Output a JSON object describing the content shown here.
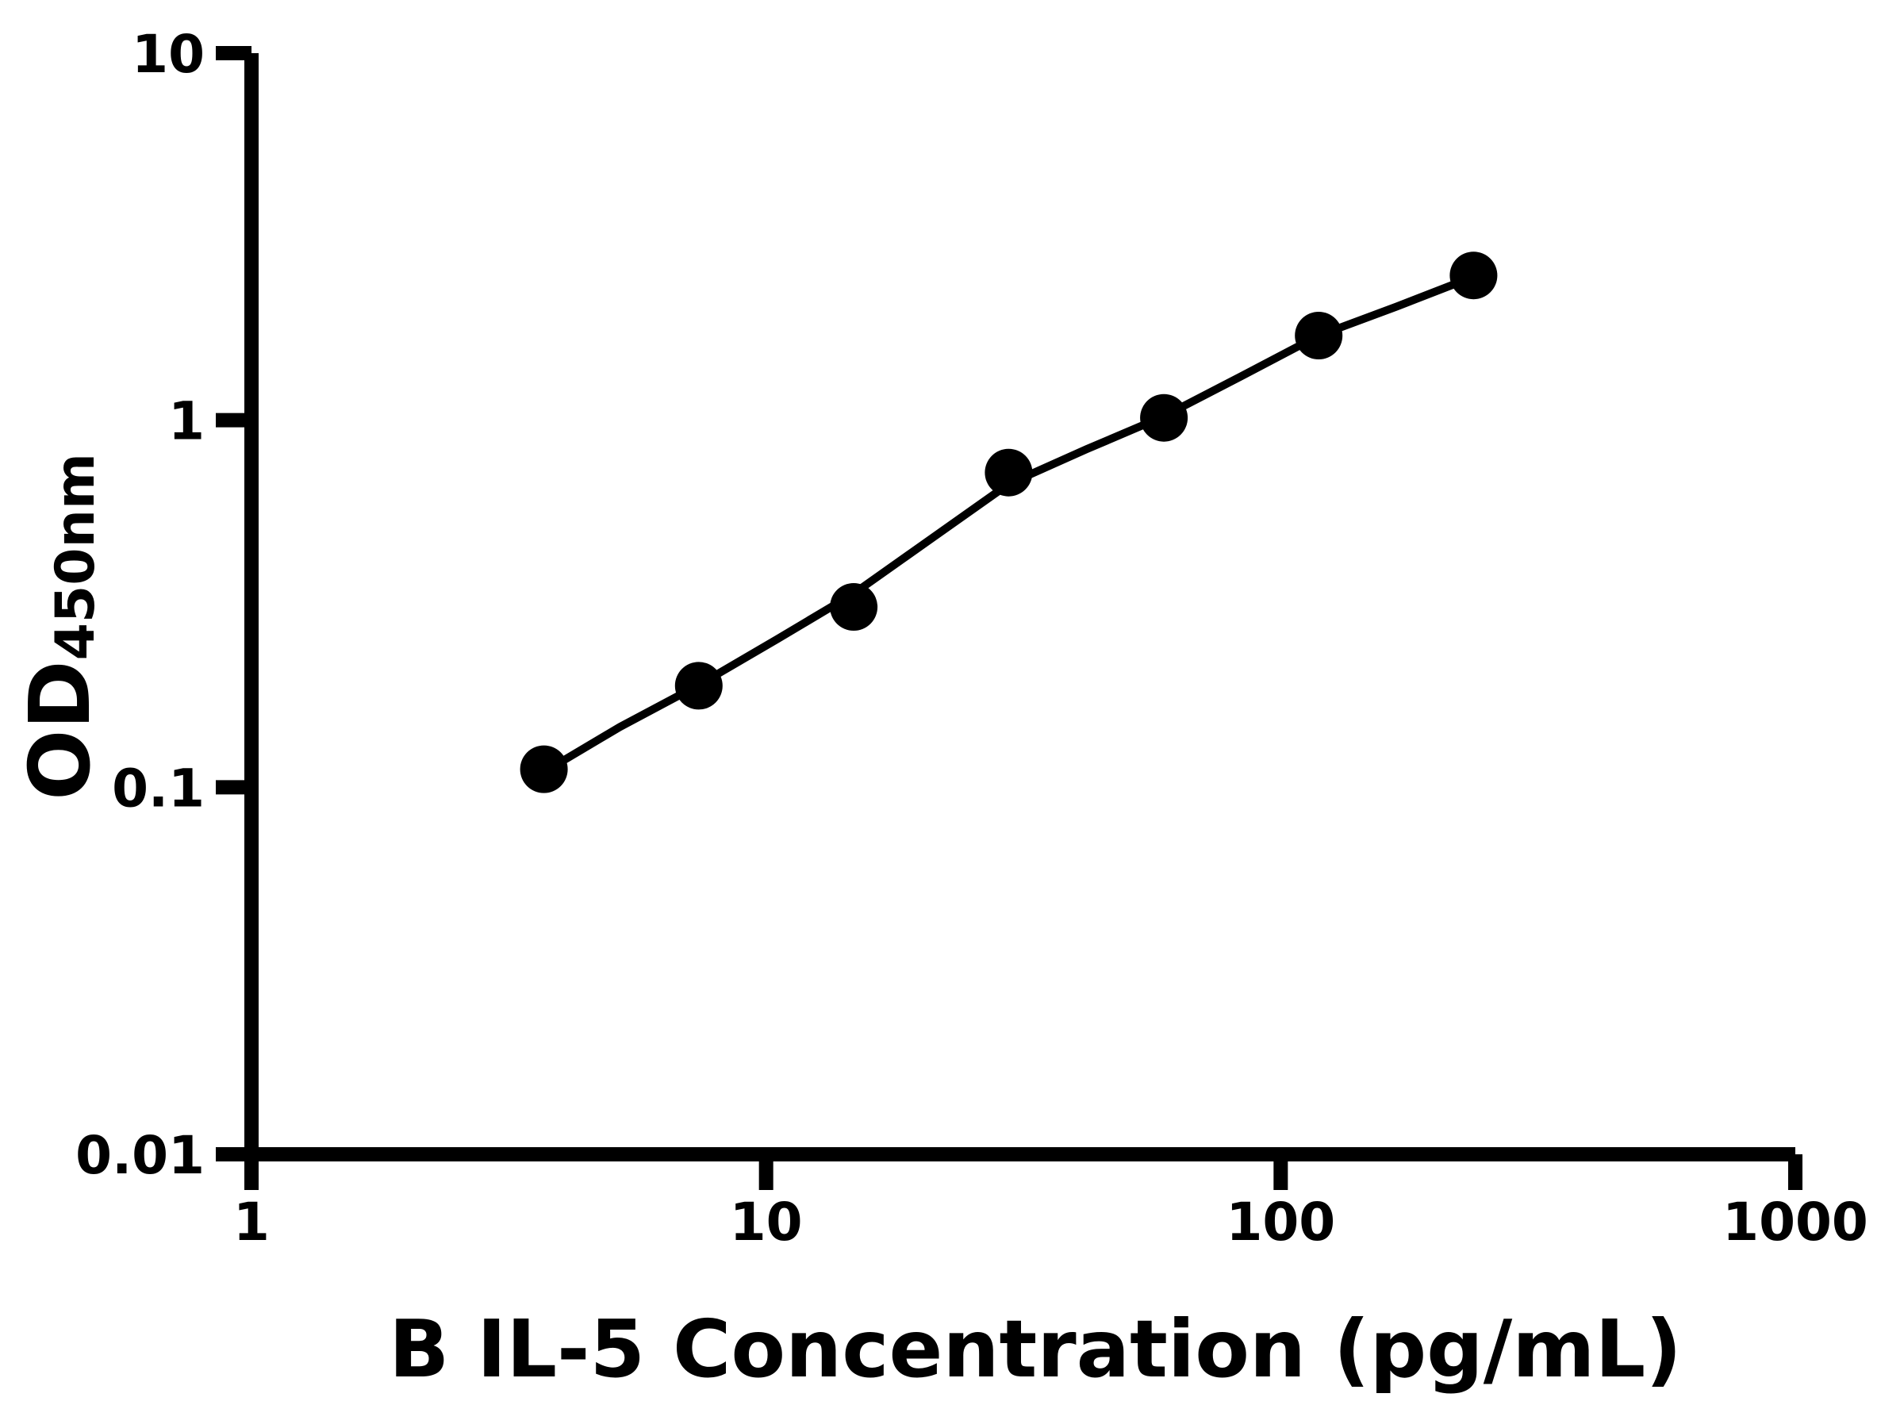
{
  "chart_data": {
    "type": "scatter",
    "title": "",
    "xlabel": "B IL-5 Concentration (pg/mL)",
    "ylabel_main": "OD",
    "ylabel_sub": "450nm",
    "x_scale": "log",
    "y_scale": "log",
    "xlim": [
      1,
      1000
    ],
    "ylim": [
      0.01,
      10
    ],
    "x_ticks": [
      {
        "value": 1,
        "label": "1"
      },
      {
        "value": 10,
        "label": "10"
      },
      {
        "value": 100,
        "label": "100"
      },
      {
        "value": 1000,
        "label": "1000"
      }
    ],
    "y_ticks": [
      {
        "value": 0.01,
        "label": "0.01"
      },
      {
        "value": 0.1,
        "label": "0.1"
      },
      {
        "value": 1,
        "label": "1"
      },
      {
        "value": 10,
        "label": "10"
      }
    ],
    "grid": false,
    "legend": "none",
    "marker_color": "#000000",
    "line_color": "#000000",
    "background": "#ffffff",
    "series": [
      {
        "name": "standard-points",
        "type": "scatter",
        "x": [
          3.7,
          7.4,
          14.8,
          29.6,
          59.3,
          118.5,
          237
        ],
        "y": [
          0.112,
          0.189,
          0.31,
          0.72,
          1.015,
          1.7,
          2.48
        ]
      },
      {
        "name": "fit-curve",
        "type": "line",
        "x": [
          3.7,
          5.2,
          7.4,
          10.5,
          14.8,
          21,
          29.6,
          42,
          59.3,
          84,
          118.5,
          168,
          237
        ],
        "y": [
          0.11,
          0.146,
          0.19,
          0.253,
          0.337,
          0.477,
          0.67,
          0.834,
          1.025,
          1.32,
          1.7,
          2.04,
          2.46
        ]
      }
    ]
  }
}
